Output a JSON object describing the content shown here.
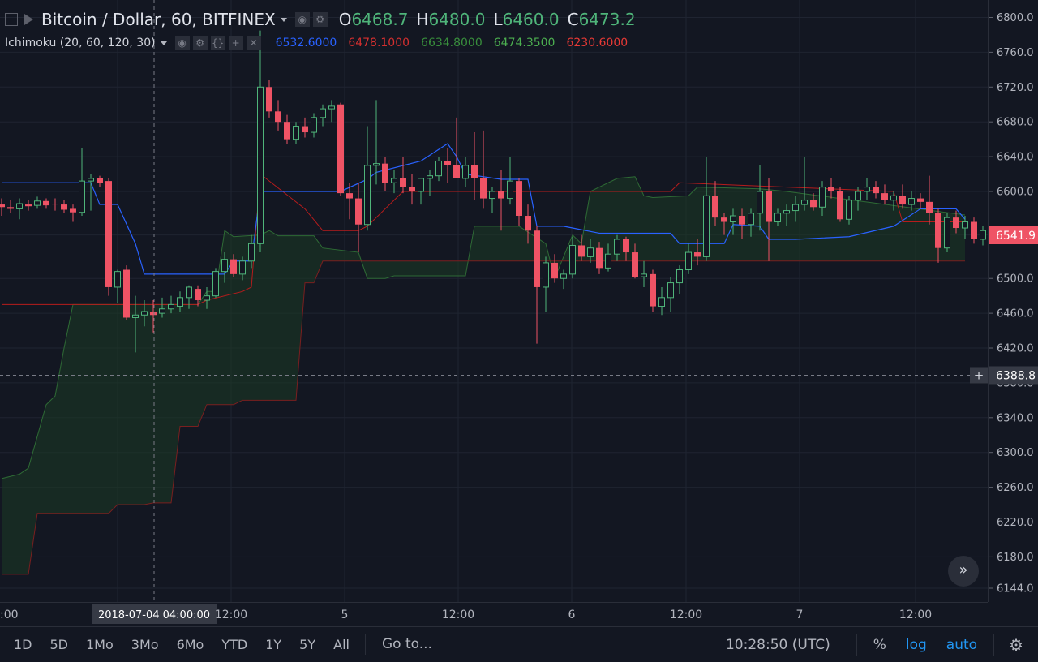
{
  "legend": {
    "symbol": "Bitcoin / Dollar, 60, BITFINEX",
    "open_key": "O",
    "open": "6468.7",
    "high_key": "H",
    "high": "6480.0",
    "low_key": "L",
    "low": "6460.0",
    "close_key": "C",
    "close": "6473.2"
  },
  "indicator": {
    "name": "Ichimoku (20, 60, 120, 30)",
    "values": [
      {
        "text": "6532.6000",
        "color": "#2962ff"
      },
      {
        "text": "6478.1000",
        "color": "#d32f2f"
      },
      {
        "text": "6634.8000",
        "color": "#388e3c"
      },
      {
        "text": "6474.3500",
        "color": "#4caf50"
      },
      {
        "text": "6230.6000",
        "color": "#e53935"
      }
    ]
  },
  "colors": {
    "up": "#4fb57a",
    "down": "#ef5365",
    "conversion": "#2962ff",
    "base": "#b71c1c",
    "cloud_edge": "#2e6b35",
    "cloud_fill": "#1b3a24"
  },
  "chart_data": {
    "type": "candlestick",
    "title": "Bitcoin / Dollar, 60, BITFINEX",
    "ylim": [
      6130,
      6820
    ],
    "y_ticks": [
      "6800.0",
      "6760.0",
      "6720.0",
      "6680.0",
      "6640.0",
      "6600.0",
      "6550.0",
      "6500.0",
      "6460.0",
      "6420.0",
      "6380.0",
      "6340.0",
      "6300.0",
      "6260.0",
      "6220.0",
      "6180.0",
      "6144.0"
    ],
    "x_tick_labels": [
      ":00",
      "2018-07-04 04:00:00",
      "12:00",
      "5",
      "12:00",
      "6",
      "12:00",
      "7",
      "12:00"
    ],
    "crosshair_price": "6388.8",
    "last_price": "6541.9",
    "candles": [
      {
        "o": 6585,
        "h": 6592,
        "l": 6572,
        "c": 6582
      },
      {
        "o": 6582,
        "h": 6590,
        "l": 6575,
        "c": 6580
      },
      {
        "o": 6580,
        "h": 6592,
        "l": 6568,
        "c": 6586
      },
      {
        "o": 6585,
        "h": 6590,
        "l": 6578,
        "c": 6583
      },
      {
        "o": 6584,
        "h": 6594,
        "l": 6580,
        "c": 6589
      },
      {
        "o": 6589,
        "h": 6592,
        "l": 6580,
        "c": 6584
      },
      {
        "o": 6586,
        "h": 6592,
        "l": 6578,
        "c": 6585
      },
      {
        "o": 6585,
        "h": 6590,
        "l": 6575,
        "c": 6579
      },
      {
        "o": 6580,
        "h": 6585,
        "l": 6565,
        "c": 6576
      },
      {
        "o": 6576,
        "h": 6650,
        "l": 6572,
        "c": 6612
      },
      {
        "o": 6612,
        "h": 6620,
        "l": 6578,
        "c": 6615
      },
      {
        "o": 6615,
        "h": 6618,
        "l": 6605,
        "c": 6610
      },
      {
        "o": 6612,
        "h": 6615,
        "l": 6480,
        "c": 6490
      },
      {
        "o": 6490,
        "h": 6510,
        "l": 6472,
        "c": 6508
      },
      {
        "o": 6510,
        "h": 6515,
        "l": 6452,
        "c": 6455
      },
      {
        "o": 6455,
        "h": 6480,
        "l": 6415,
        "c": 6458
      },
      {
        "o": 6458,
        "h": 6475,
        "l": 6445,
        "c": 6462
      },
      {
        "o": 6462,
        "h": 6475,
        "l": 6438,
        "c": 6458
      },
      {
        "o": 6460,
        "h": 6478,
        "l": 6455,
        "c": 6465
      },
      {
        "o": 6465,
        "h": 6480,
        "l": 6460,
        "c": 6470
      },
      {
        "o": 6468,
        "h": 6485,
        "l": 6462,
        "c": 6478
      },
      {
        "o": 6478,
        "h": 6492,
        "l": 6465,
        "c": 6490
      },
      {
        "o": 6488,
        "h": 6492,
        "l": 6468,
        "c": 6475
      },
      {
        "o": 6475,
        "h": 6490,
        "l": 6465,
        "c": 6480
      },
      {
        "o": 6480,
        "h": 6512,
        "l": 6478,
        "c": 6508
      },
      {
        "o": 6508,
        "h": 6530,
        "l": 6495,
        "c": 6522
      },
      {
        "o": 6522,
        "h": 6528,
        "l": 6502,
        "c": 6505
      },
      {
        "o": 6505,
        "h": 6525,
        "l": 6498,
        "c": 6520
      },
      {
        "o": 6520,
        "h": 6550,
        "l": 6512,
        "c": 6540
      },
      {
        "o": 6540,
        "h": 6785,
        "l": 6530,
        "c": 6720
      },
      {
        "o": 6720,
        "h": 6728,
        "l": 6685,
        "c": 6692
      },
      {
        "o": 6692,
        "h": 6705,
        "l": 6670,
        "c": 6680
      },
      {
        "o": 6680,
        "h": 6688,
        "l": 6655,
        "c": 6660
      },
      {
        "o": 6660,
        "h": 6680,
        "l": 6655,
        "c": 6675
      },
      {
        "o": 6675,
        "h": 6685,
        "l": 6662,
        "c": 6668
      },
      {
        "o": 6668,
        "h": 6690,
        "l": 6662,
        "c": 6685
      },
      {
        "o": 6685,
        "h": 6700,
        "l": 6675,
        "c": 6695
      },
      {
        "o": 6695,
        "h": 6705,
        "l": 6680,
        "c": 6698
      },
      {
        "o": 6700,
        "h": 6702,
        "l": 6595,
        "c": 6598
      },
      {
        "o": 6598,
        "h": 6610,
        "l": 6568,
        "c": 6592
      },
      {
        "o": 6592,
        "h": 6610,
        "l": 6530,
        "c": 6562
      },
      {
        "o": 6562,
        "h": 6675,
        "l": 6555,
        "c": 6630
      },
      {
        "o": 6630,
        "h": 6705,
        "l": 6608,
        "c": 6632
      },
      {
        "o": 6632,
        "h": 6640,
        "l": 6600,
        "c": 6610
      },
      {
        "o": 6610,
        "h": 6625,
        "l": 6598,
        "c": 6615
      },
      {
        "o": 6615,
        "h": 6640,
        "l": 6598,
        "c": 6605
      },
      {
        "o": 6605,
        "h": 6620,
        "l": 6585,
        "c": 6600
      },
      {
        "o": 6600,
        "h": 6612,
        "l": 6585,
        "c": 6615
      },
      {
        "o": 6615,
        "h": 6625,
        "l": 6595,
        "c": 6618
      },
      {
        "o": 6618,
        "h": 6640,
        "l": 6612,
        "c": 6635
      },
      {
        "o": 6635,
        "h": 6650,
        "l": 6610,
        "c": 6630
      },
      {
        "o": 6630,
        "h": 6685,
        "l": 6615,
        "c": 6615
      },
      {
        "o": 6615,
        "h": 6640,
        "l": 6605,
        "c": 6630
      },
      {
        "o": 6630,
        "h": 6668,
        "l": 6590,
        "c": 6615
      },
      {
        "o": 6615,
        "h": 6670,
        "l": 6580,
        "c": 6592
      },
      {
        "o": 6592,
        "h": 6605,
        "l": 6575,
        "c": 6600
      },
      {
        "o": 6600,
        "h": 6625,
        "l": 6555,
        "c": 6592
      },
      {
        "o": 6592,
        "h": 6640,
        "l": 6585,
        "c": 6612
      },
      {
        "o": 6612,
        "h": 6615,
        "l": 6560,
        "c": 6572
      },
      {
        "o": 6572,
        "h": 6585,
        "l": 6540,
        "c": 6555
      },
      {
        "o": 6555,
        "h": 6560,
        "l": 6425,
        "c": 6490
      },
      {
        "o": 6490,
        "h": 6525,
        "l": 6462,
        "c": 6518
      },
      {
        "o": 6518,
        "h": 6528,
        "l": 6495,
        "c": 6500
      },
      {
        "o": 6500,
        "h": 6510,
        "l": 6488,
        "c": 6505
      },
      {
        "o": 6505,
        "h": 6548,
        "l": 6500,
        "c": 6538
      },
      {
        "o": 6538,
        "h": 6550,
        "l": 6520,
        "c": 6525
      },
      {
        "o": 6525,
        "h": 6545,
        "l": 6518,
        "c": 6535
      },
      {
        "o": 6535,
        "h": 6542,
        "l": 6505,
        "c": 6512
      },
      {
        "o": 6512,
        "h": 6540,
        "l": 6508,
        "c": 6528
      },
      {
        "o": 6528,
        "h": 6550,
        "l": 6520,
        "c": 6545
      },
      {
        "o": 6545,
        "h": 6548,
        "l": 6520,
        "c": 6530
      },
      {
        "o": 6530,
        "h": 6540,
        "l": 6500,
        "c": 6502
      },
      {
        "o": 6502,
        "h": 6520,
        "l": 6490,
        "c": 6505
      },
      {
        "o": 6505,
        "h": 6510,
        "l": 6462,
        "c": 6468
      },
      {
        "o": 6468,
        "h": 6490,
        "l": 6458,
        "c": 6478
      },
      {
        "o": 6478,
        "h": 6502,
        "l": 6462,
        "c": 6495
      },
      {
        "o": 6495,
        "h": 6515,
        "l": 6482,
        "c": 6510
      },
      {
        "o": 6510,
        "h": 6540,
        "l": 6505,
        "c": 6530
      },
      {
        "o": 6530,
        "h": 6545,
        "l": 6515,
        "c": 6525
      },
      {
        "o": 6525,
        "h": 6640,
        "l": 6520,
        "c": 6595
      },
      {
        "o": 6595,
        "h": 6612,
        "l": 6560,
        "c": 6570
      },
      {
        "o": 6570,
        "h": 6575,
        "l": 6550,
        "c": 6565
      },
      {
        "o": 6565,
        "h": 6580,
        "l": 6550,
        "c": 6572
      },
      {
        "o": 6572,
        "h": 6580,
        "l": 6545,
        "c": 6562
      },
      {
        "o": 6562,
        "h": 6580,
        "l": 6548,
        "c": 6575
      },
      {
        "o": 6575,
        "h": 6630,
        "l": 6555,
        "c": 6600
      },
      {
        "o": 6600,
        "h": 6615,
        "l": 6520,
        "c": 6565
      },
      {
        "o": 6565,
        "h": 6580,
        "l": 6560,
        "c": 6575
      },
      {
        "o": 6575,
        "h": 6585,
        "l": 6560,
        "c": 6578
      },
      {
        "o": 6578,
        "h": 6595,
        "l": 6565,
        "c": 6585
      },
      {
        "o": 6585,
        "h": 6640,
        "l": 6578,
        "c": 6590
      },
      {
        "o": 6590,
        "h": 6598,
        "l": 6578,
        "c": 6582
      },
      {
        "o": 6582,
        "h": 6612,
        "l": 6572,
        "c": 6605
      },
      {
        "o": 6605,
        "h": 6615,
        "l": 6592,
        "c": 6600
      },
      {
        "o": 6600,
        "h": 6605,
        "l": 6565,
        "c": 6568
      },
      {
        "o": 6568,
        "h": 6595,
        "l": 6562,
        "c": 6590
      },
      {
        "o": 6590,
        "h": 6605,
        "l": 6578,
        "c": 6600
      },
      {
        "o": 6600,
        "h": 6615,
        "l": 6590,
        "c": 6605
      },
      {
        "o": 6605,
        "h": 6612,
        "l": 6592,
        "c": 6598
      },
      {
        "o": 6598,
        "h": 6608,
        "l": 6585,
        "c": 6590
      },
      {
        "o": 6590,
        "h": 6600,
        "l": 6578,
        "c": 6595
      },
      {
        "o": 6595,
        "h": 6608,
        "l": 6580,
        "c": 6585
      },
      {
        "o": 6585,
        "h": 6600,
        "l": 6578,
        "c": 6592
      },
      {
        "o": 6592,
        "h": 6598,
        "l": 6580,
        "c": 6588
      },
      {
        "o": 6588,
        "h": 6618,
        "l": 6562,
        "c": 6575
      },
      {
        "o": 6575,
        "h": 6580,
        "l": 6518,
        "c": 6535
      },
      {
        "o": 6535,
        "h": 6575,
        "l": 6530,
        "c": 6570
      },
      {
        "o": 6570,
        "h": 6578,
        "l": 6552,
        "c": 6558
      },
      {
        "o": 6558,
        "h": 6572,
        "l": 6545,
        "c": 6565
      },
      {
        "o": 6565,
        "h": 6570,
        "l": 6540,
        "c": 6545
      },
      {
        "o": 6545,
        "h": 6560,
        "l": 6538,
        "c": 6555
      },
      {
        "o": 6555,
        "h": 6560,
        "l": 6540,
        "c": 6542
      }
    ],
    "conversion_line": [
      [
        0,
        6610
      ],
      [
        10,
        6610
      ],
      [
        11,
        6585
      ],
      [
        12,
        6585
      ],
      [
        13,
        6585
      ],
      [
        15,
        6540
      ],
      [
        16,
        6505
      ],
      [
        25,
        6505
      ],
      [
        26,
        6520
      ],
      [
        28,
        6520
      ],
      [
        29,
        6600
      ],
      [
        38,
        6600
      ],
      [
        41,
        6614
      ],
      [
        42,
        6622
      ],
      [
        47,
        6635
      ],
      [
        50,
        6655
      ],
      [
        51,
        6640
      ],
      [
        52,
        6620
      ],
      [
        56,
        6614
      ],
      [
        59,
        6614
      ],
      [
        60,
        6560
      ],
      [
        63,
        6560
      ],
      [
        64,
        6558
      ],
      [
        67,
        6552
      ],
      [
        75,
        6552
      ],
      [
        76,
        6540
      ],
      [
        81,
        6540
      ],
      [
        82,
        6562
      ],
      [
        85,
        6560
      ],
      [
        86,
        6545
      ],
      [
        89,
        6545
      ],
      [
        95,
        6548
      ],
      [
        100,
        6560
      ],
      [
        103,
        6580
      ],
      [
        107,
        6580
      ],
      [
        108,
        6568
      ]
    ],
    "base_line": [
      [
        0,
        6470
      ],
      [
        22,
        6470
      ],
      [
        23,
        6475
      ],
      [
        27,
        6485
      ],
      [
        28,
        6490
      ],
      [
        29,
        6620
      ],
      [
        34,
        6580
      ],
      [
        36,
        6555
      ],
      [
        40,
        6555
      ],
      [
        41,
        6560
      ],
      [
        45,
        6600
      ],
      [
        75,
        6600
      ],
      [
        76,
        6610
      ],
      [
        100,
        6600
      ],
      [
        101,
        6565
      ],
      [
        108,
        6565
      ]
    ],
    "lead_a": [
      [
        0,
        6270
      ],
      [
        2,
        6275
      ],
      [
        3,
        6282
      ],
      [
        5,
        6355
      ],
      [
        6,
        6365
      ],
      [
        7,
        6420
      ],
      [
        8,
        6470
      ],
      [
        22,
        6470
      ],
      [
        23,
        6485
      ],
      [
        24,
        6485
      ],
      [
        25,
        6555
      ],
      [
        26,
        6548
      ],
      [
        29,
        6550
      ],
      [
        30,
        6555
      ],
      [
        31,
        6549
      ],
      [
        35,
        6549
      ],
      [
        36,
        6535
      ],
      [
        40,
        6530
      ],
      [
        41,
        6500
      ],
      [
        43,
        6500
      ],
      [
        44,
        6503
      ],
      [
        52,
        6503
      ],
      [
        53,
        6560
      ],
      [
        58,
        6560
      ],
      [
        61,
        6540
      ],
      [
        62,
        6500
      ],
      [
        64,
        6550
      ],
      [
        65,
        6540
      ],
      [
        66,
        6600
      ],
      [
        69,
        6615
      ],
      [
        71,
        6617
      ],
      [
        72,
        6595
      ],
      [
        73,
        6593
      ],
      [
        77,
        6595
      ],
      [
        78,
        6605
      ],
      [
        85,
        6603
      ],
      [
        88,
        6600
      ],
      [
        108,
        6573
      ]
    ],
    "lead_b": [
      [
        0,
        6160
      ],
      [
        3,
        6160
      ],
      [
        4,
        6230
      ],
      [
        11,
        6230
      ],
      [
        12,
        6230
      ],
      [
        13,
        6240
      ],
      [
        15,
        6240
      ],
      [
        16,
        6240
      ],
      [
        17,
        6242
      ],
      [
        19,
        6242
      ],
      [
        20,
        6330
      ],
      [
        22,
        6330
      ],
      [
        23,
        6355
      ],
      [
        26,
        6355
      ],
      [
        27,
        6360
      ],
      [
        33,
        6360
      ],
      [
        34,
        6495
      ],
      [
        35,
        6495
      ],
      [
        36,
        6520
      ],
      [
        108,
        6520
      ]
    ]
  },
  "time_axis_labels": [
    ":00",
    "2018-07-04 04:00:00",
    "12:00",
    "5",
    "12:00",
    "6",
    "12:00",
    "7",
    "12:00"
  ],
  "bottom_bar": {
    "periods": [
      "1D",
      "5D",
      "1Mo",
      "3Mo",
      "6Mo",
      "YTD",
      "1Y",
      "5Y",
      "All"
    ],
    "goto": "Go to...",
    "clock": "10:28:50 (UTC)",
    "percent": "%",
    "log": "log",
    "auto": "auto"
  },
  "icons": {
    "collapse": "minus-square-icon",
    "flag": "flag-icon",
    "eye": "eye-icon",
    "gear": "gear-icon",
    "scroll": "double-chevron-right-icon",
    "crosshair_add": "plus-icon"
  }
}
